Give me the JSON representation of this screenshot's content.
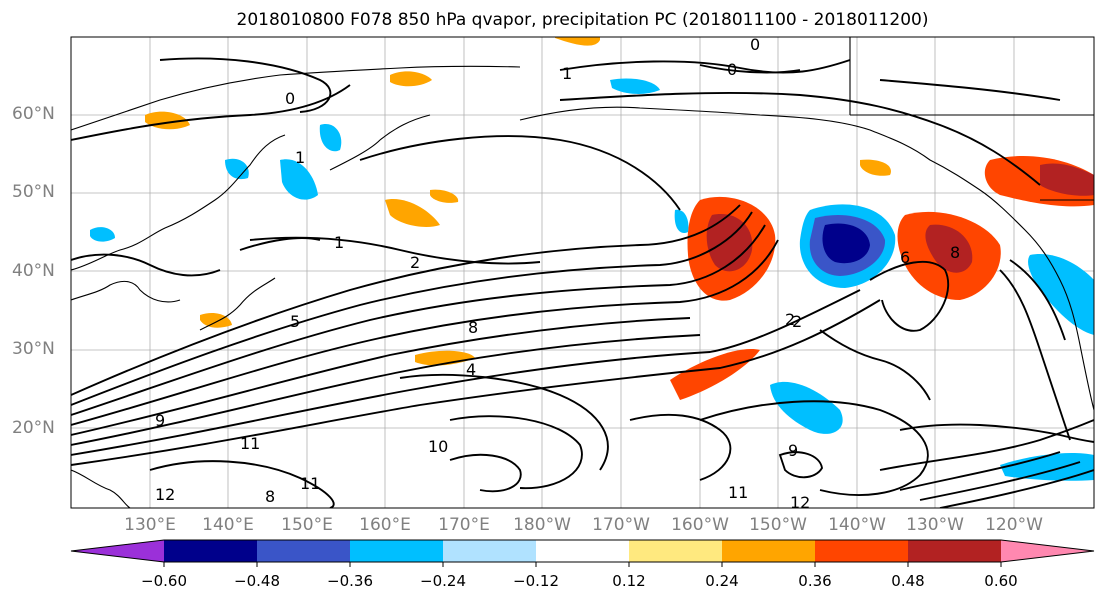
{
  "title": "2018010800 F078 850 hPa qvapor, precipitation PC (2018011100 - 2018011200)",
  "map": {
    "projection": "cylindrical",
    "region": "North Pacific",
    "lat_labels": [
      "60°N",
      "50°N",
      "40°N",
      "30°N",
      "20°N"
    ],
    "lon_labels": [
      "130°E",
      "140°E",
      "150°E",
      "160°E",
      "170°E",
      "180°W",
      "170°W",
      "160°W",
      "150°W",
      "140°W",
      "130°W",
      "120°W"
    ],
    "contour_labels": [
      "0",
      "0",
      "0",
      "1",
      "1",
      "1",
      "2",
      "2",
      "5",
      "4",
      "8",
      "9",
      "10",
      "11",
      "11",
      "12",
      "11",
      "8",
      "9",
      "8",
      "12",
      "6",
      "2"
    ],
    "grid": true,
    "coastlines": true
  },
  "colorbar": {
    "orientation": "horizontal",
    "extend": "both",
    "colors": [
      "#9b30d9",
      "#00008b",
      "#3a55c8",
      "#00bfff",
      "#b0e2ff",
      "#ffffff",
      "#ffe97f",
      "#ffa500",
      "#ff4500",
      "#b22222",
      "#ff88b0"
    ],
    "ticks": [
      "−0.60",
      "−0.48",
      "−0.36",
      "−0.24",
      "−0.12",
      "0.12",
      "0.24",
      "0.36",
      "0.48",
      "0.60"
    ]
  }
}
